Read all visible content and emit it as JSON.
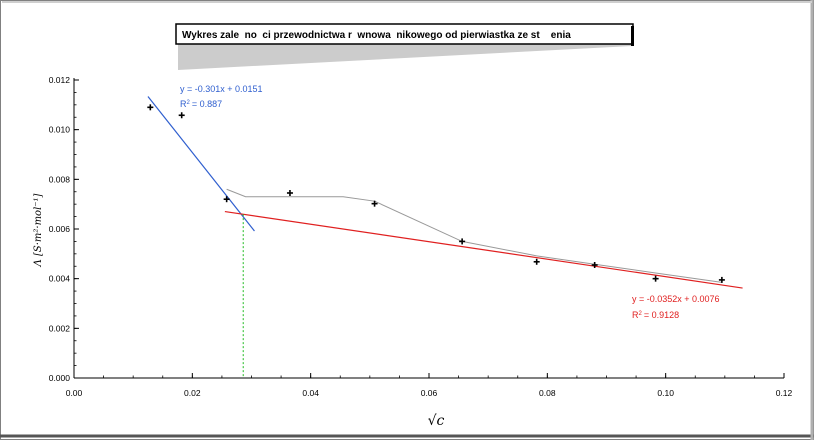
{
  "chart_data": {
    "type": "scatter",
    "title": "Wykres zale  no  ci przewodnictwa r  wnowa  nikowego od pierwiastka ze st    enia",
    "xlabel": "√c",
    "ylabel": "Λ [S·m²·mol⁻¹]",
    "xlim": [
      0.0,
      0.12
    ],
    "ylim": [
      0.0,
      0.012
    ],
    "x_ticks": [
      "0.00",
      "0.02",
      "0.04",
      "0.06",
      "0.08",
      "0.10",
      "0.12"
    ],
    "y_ticks": [
      "0.000",
      "0.002",
      "0.004",
      "0.006",
      "0.008",
      "0.010",
      "0.012"
    ],
    "grid": false,
    "points": {
      "x": [
        0.0129,
        0.0182,
        0.0258,
        0.0365,
        0.0508,
        0.0656,
        0.0782,
        0.088,
        0.0983,
        0.1095
      ],
      "y": [
        0.0109,
        0.01058,
        0.0072,
        0.00745,
        0.00702,
        0.0055,
        0.00468,
        0.00455,
        0.004,
        0.00395
      ]
    },
    "connector": {
      "color": "#999999",
      "x": [
        0.0258,
        0.029,
        0.0365,
        0.0455,
        0.0508,
        0.0656,
        0.0782,
        0.088,
        0.0983,
        0.1095
      ],
      "y": [
        0.0076,
        0.0073,
        0.0073,
        0.0073,
        0.00712,
        0.0055,
        0.00492,
        0.00458,
        0.00423,
        0.00385
      ]
    },
    "trendlines": [
      {
        "equation": "y = -0.301x + 0.0151",
        "r2": "= 0.887",
        "slope": -0.301,
        "intercept": 0.0151,
        "x_range": [
          0.0125,
          0.0305
        ],
        "color": "#2f5fcf"
      },
      {
        "equation": "y = -0.0352x + 0.0076",
        "r2": "= 0.9128",
        "slope": -0.0352,
        "intercept": 0.0076,
        "x_range": [
          0.0255,
          0.113
        ],
        "color": "#e02020"
      }
    ],
    "intersection_marker": {
      "x": 0.0286,
      "y_top": 0.0066,
      "color": "#22bb22"
    }
  }
}
